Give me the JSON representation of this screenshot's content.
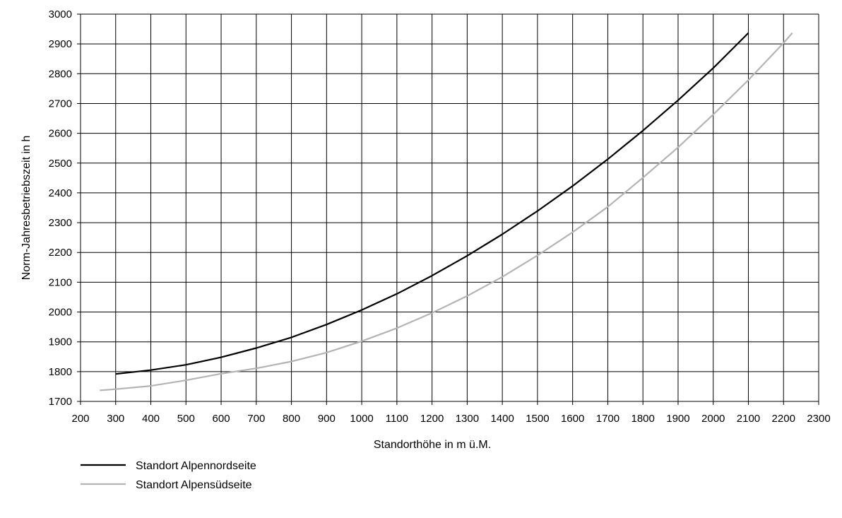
{
  "chart_data": {
    "type": "line",
    "xlabel": "Standorthöhe in m ü.M.",
    "ylabel": "Norm-Jahresbetriebszeit in h",
    "xlim": [
      200,
      2300
    ],
    "ylim": [
      1700,
      3000
    ],
    "xticks": [
      200,
      300,
      400,
      500,
      600,
      700,
      800,
      900,
      1000,
      1100,
      1200,
      1300,
      1400,
      1500,
      1600,
      1700,
      1800,
      1900,
      2000,
      2100,
      2200,
      2300
    ],
    "yticks": [
      1700,
      1800,
      1900,
      2000,
      2100,
      2200,
      2300,
      2400,
      2500,
      2600,
      2700,
      2800,
      2900,
      3000
    ],
    "grid": true,
    "legend_position": "bottom-left",
    "series": [
      {
        "name": "Standort Alpennordseite",
        "color": "#000000",
        "x": [
          300,
          400,
          500,
          600,
          700,
          800,
          900,
          1000,
          1100,
          1200,
          1300,
          1400,
          1500,
          1600,
          1700,
          1800,
          1900,
          2000,
          2100
        ],
        "y": [
          1792,
          1805,
          1823,
          1848,
          1879,
          1915,
          1958,
          2007,
          2061,
          2122,
          2189,
          2261,
          2339,
          2423,
          2513,
          2609,
          2711,
          2819,
          2937
        ]
      },
      {
        "name": "Standort Alpensüdseite",
        "color": "#b4b4b4",
        "x": [
          255,
          300,
          400,
          500,
          600,
          700,
          800,
          900,
          1000,
          1100,
          1200,
          1300,
          1400,
          1500,
          1600,
          1700,
          1800,
          1900,
          2000,
          2100,
          2200,
          2225
        ],
        "y": [
          1737,
          1741,
          1752,
          1771,
          1793,
          1811,
          1834,
          1864,
          1902,
          1946,
          1997,
          2054,
          2118,
          2190,
          2268,
          2353,
          2451,
          2553,
          2663,
          2779,
          2903,
          2937
        ]
      }
    ]
  }
}
